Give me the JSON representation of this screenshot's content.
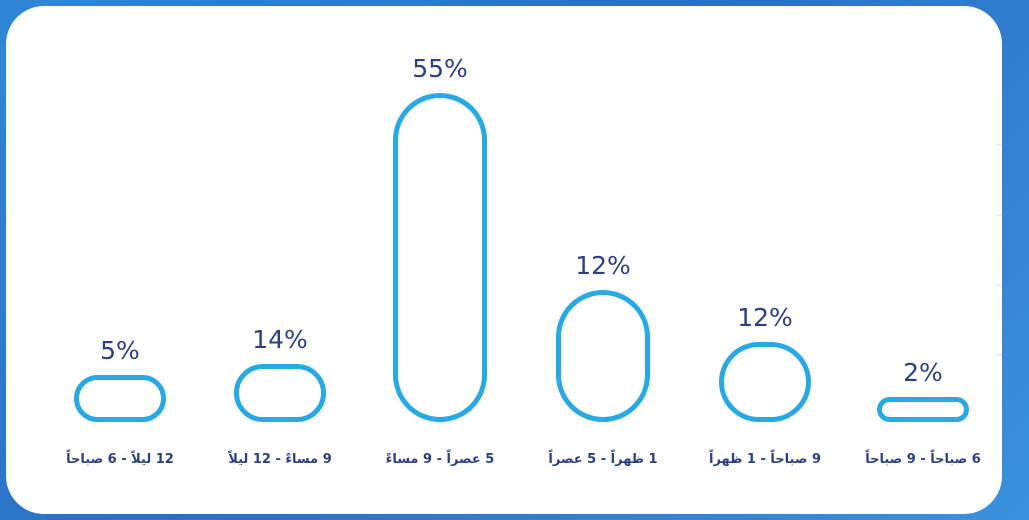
{
  "colors": {
    "bar_stroke": "#26a9e4",
    "text": "#2b3e86",
    "card": "#ffffff"
  },
  "chart_data": {
    "type": "bar",
    "title": "",
    "xlabel": "",
    "ylabel": "",
    "ylim": [
      0,
      55
    ],
    "grid": false,
    "categories": [
      "12 ليلاً - 6 صباحاً",
      "9 مساءً - 12 ليلاً",
      "5 عصراً - 9 مساءً",
      "1 ظهراً - 5 عصراً",
      "9 صباحاً - 1 ظهراً",
      "6 صباحاً - 9 صباحاً"
    ],
    "values": [
      5,
      14,
      55,
      12,
      12,
      2
    ],
    "labels": [
      "5%",
      "14%",
      "55%",
      "12%",
      "12%",
      "2%"
    ]
  }
}
